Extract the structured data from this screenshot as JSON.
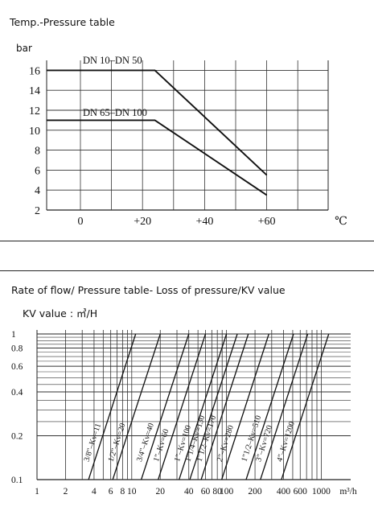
{
  "section1": {
    "title": "Temp.-Pressure table"
  },
  "section2": {
    "title": "Rate of flow/ Pressure table- Loss of pressure/KV value",
    "kv_unit": "KV value : ㎥/H"
  },
  "chart_data": [
    {
      "type": "line",
      "title": "Temp.-Pressure table",
      "ylabel": "bar",
      "xlabel": "℃",
      "xlim": [
        -20,
        80
      ],
      "ylim": [
        2,
        17
      ],
      "x_ticks": [
        0,
        20,
        40,
        60
      ],
      "x_tick_labels": [
        "0",
        "+20",
        "+40",
        "+60"
      ],
      "y_ticks": [
        2,
        4,
        6,
        8,
        10,
        12,
        14,
        16
      ],
      "y_tick_labels": [
        "2",
        "4",
        "6",
        "8",
        "10",
        "12",
        "14",
        "16"
      ],
      "x_unit_label": "℃",
      "grid": true,
      "series": [
        {
          "name": "DN 10–DN 50",
          "points": [
            [
              -20,
              16
            ],
            [
              24,
              16
            ],
            [
              60,
              5.5
            ]
          ]
        },
        {
          "name": "DN 65–DN 100",
          "points": [
            [
              -20,
              11
            ],
            [
              24,
              11
            ],
            [
              60,
              3.5
            ]
          ]
        }
      ]
    },
    {
      "type": "line",
      "title": "Rate of flow/ Pressure table- Loss of pressure/KV value",
      "x_scale": "log",
      "y_scale": "log",
      "xlim": [
        1,
        1500
      ],
      "ylim": [
        0.1,
        1
      ],
      "x_ticks": [
        1,
        2,
        4,
        6,
        8,
        10,
        20,
        40,
        60,
        80,
        100,
        200,
        400,
        600,
        1000
      ],
      "x_tick_labels": [
        "1",
        "2",
        "4",
        "6",
        "8",
        "10",
        "20",
        "40",
        "60",
        "80",
        "100",
        "200",
        "400",
        "600",
        "1000"
      ],
      "x_unit_label": "m³/h",
      "y_ticks": [
        0.1,
        0.2,
        0.4,
        0.6,
        0.8,
        1
      ],
      "y_tick_labels": [
        "0.1",
        "0.2",
        "0.4",
        "0.6",
        "0.8",
        "1"
      ],
      "grid": true,
      "series": [
        {
          "name": "3/8\"–Kv=11",
          "points": [
            [
              3.5,
              0.1
            ],
            [
              11,
              1
            ]
          ]
        },
        {
          "name": "1/2\"–Kv=20",
          "points": [
            [
              6.3,
              0.1
            ],
            [
              20,
              1
            ]
          ]
        },
        {
          "name": "3/4\"–Kv=40",
          "points": [
            [
              12.6,
              0.1
            ],
            [
              40,
              1
            ]
          ]
        },
        {
          "name": "1\"–Kv=60",
          "points": [
            [
              19,
              0.1
            ],
            [
              60,
              1
            ]
          ]
        },
        {
          "name": "1\"–Kv=100",
          "points": [
            [
              31.6,
              0.1
            ],
            [
              100,
              1
            ]
          ]
        },
        {
          "name": "1\"1/4–Kv=130",
          "points": [
            [
              41,
              0.1
            ],
            [
              130,
              1
            ]
          ]
        },
        {
          "name": "1\"1/2–Kv=170",
          "points": [
            [
              54,
              0.1
            ],
            [
              170,
              1
            ]
          ]
        },
        {
          "name": "2\"–Kv=280",
          "points": [
            [
              89,
              0.1
            ],
            [
              280,
              1
            ]
          ]
        },
        {
          "name": "1\"1/2–Kv=510",
          "points": [
            [
              161,
              0.1
            ],
            [
              510,
              1
            ]
          ]
        },
        {
          "name": "3\"–Kv=720",
          "points": [
            [
              228,
              0.1
            ],
            [
              720,
              1
            ]
          ]
        },
        {
          "name": "4\"–Kv=1200",
          "points": [
            [
              380,
              0.1
            ],
            [
              1200,
              1
            ]
          ]
        }
      ]
    }
  ]
}
